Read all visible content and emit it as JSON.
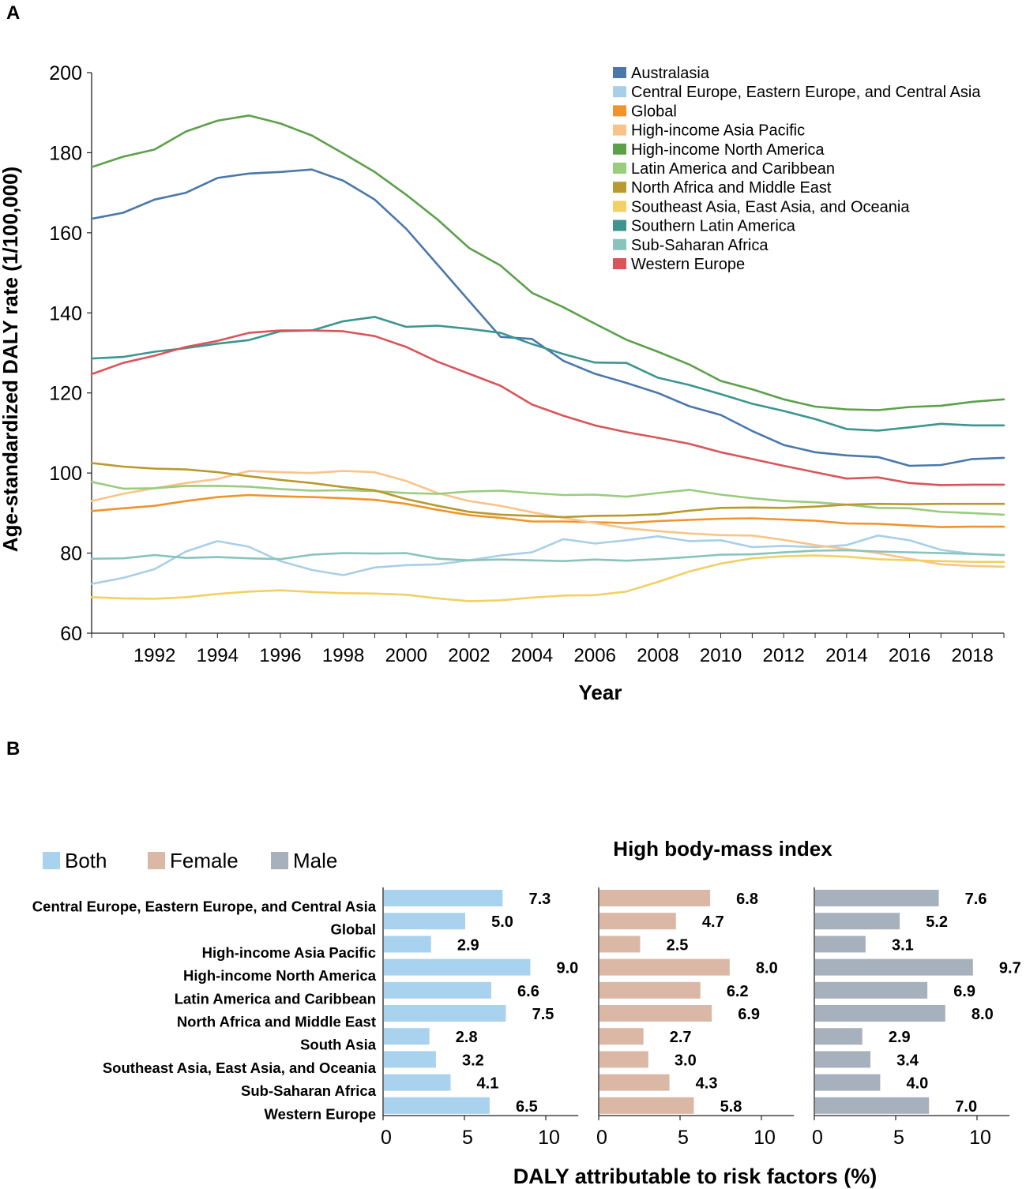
{
  "panel_labels": {
    "a": "A",
    "b": "B"
  },
  "chart_data": [
    {
      "type": "line",
      "panel": "A",
      "title": "",
      "xlabel": "Year",
      "ylabel": "Age-standardized DALY rate (1/100,000)",
      "xlim": [
        1990,
        2019
      ],
      "ylim": [
        60,
        200
      ],
      "y_ticks": [
        60,
        80,
        100,
        120,
        140,
        160,
        180,
        200
      ],
      "x_ticks": [
        1992,
        1994,
        1996,
        1998,
        2000,
        2002,
        2004,
        2006,
        2008,
        2010,
        2012,
        2014,
        2016,
        2018
      ],
      "x": [
        1990,
        1991,
        1992,
        1993,
        1994,
        1995,
        1996,
        1997,
        1998,
        1999,
        2000,
        2001,
        2002,
        2003,
        2004,
        2005,
        2006,
        2007,
        2008,
        2009,
        2010,
        2011,
        2012,
        2013,
        2014,
        2015,
        2016,
        2017,
        2018,
        2019
      ],
      "legend_position": "top-right",
      "series": [
        {
          "name": "Australasia",
          "color": "#4a78aa",
          "values": [
            163.5,
            165,
            168.3,
            170,
            173.7,
            174.8,
            175.2,
            175.8,
            173,
            168.3,
            161,
            152,
            143,
            134,
            133.5,
            128,
            124.8,
            122.5,
            120,
            116.7,
            114.5,
            110.5,
            107,
            105.2,
            104.4,
            104,
            101.8,
            102,
            103.5,
            103.8
          ]
        },
        {
          "name": "Central Europe, Eastern Europe, and Central Asia",
          "color": "#a9cfe8",
          "values": [
            72.3,
            73.8,
            76,
            80.4,
            83,
            81.6,
            78,
            75.8,
            74.5,
            76.4,
            77,
            77.2,
            78.2,
            79.4,
            80.2,
            83.5,
            82.4,
            83.2,
            84.2,
            83,
            83.2,
            81.5,
            81.8,
            81.5,
            82,
            84.4,
            83.2,
            80.8,
            79.8,
            79.5
          ]
        },
        {
          "name": "Global",
          "color": "#f0932b",
          "values": [
            90.5,
            91.2,
            91.8,
            93,
            94,
            94.5,
            94.2,
            94,
            93.7,
            93.3,
            92.3,
            90.8,
            89.5,
            88.8,
            87.9,
            87.9,
            87.7,
            87.5,
            88,
            88.3,
            88.6,
            88.7,
            88.4,
            88.1,
            87.4,
            87.3,
            86.9,
            86.5,
            86.6,
            86.6
          ]
        },
        {
          "name": "High-income Asia Pacific",
          "color": "#f9c489",
          "values": [
            93,
            94.8,
            96.2,
            97.5,
            98.5,
            100.5,
            100.2,
            100,
            100.5,
            100.2,
            98,
            95,
            93,
            91.8,
            90.2,
            88.8,
            87.5,
            86.2,
            85.5,
            84.9,
            84.5,
            84.4,
            83.3,
            82,
            81,
            80,
            78.6,
            77.2,
            76.8,
            76.6
          ]
        },
        {
          "name": "High-income North America",
          "color": "#5ca04a",
          "values": [
            176.4,
            179,
            180.8,
            185.3,
            188,
            189.3,
            187.3,
            184.3,
            179.8,
            175.2,
            169.5,
            163.3,
            156.2,
            151.8,
            145,
            141.4,
            137.3,
            133.3,
            130.3,
            127.1,
            123,
            120.9,
            118.4,
            116.6,
            115.9,
            115.7,
            116.5,
            116.8,
            117.8,
            118.4
          ]
        },
        {
          "name": "Latin America and Caribbean",
          "color": "#99cc7c",
          "values": [
            97.8,
            96.1,
            96.2,
            96.8,
            96.8,
            96.6,
            96,
            95.6,
            95.7,
            95.5,
            95,
            94.8,
            95.4,
            95.6,
            95,
            94.5,
            94.6,
            94.1,
            95,
            95.8,
            94.6,
            93.7,
            93,
            92.7,
            92.1,
            91.3,
            91.2,
            90.3,
            90,
            89.6
          ]
        },
        {
          "name": "North Africa and Middle East",
          "color": "#b89a2e",
          "values": [
            102.5,
            101.6,
            101.1,
            100.9,
            100.2,
            99.2,
            98.3,
            97.5,
            96.5,
            95.7,
            93.5,
            91.8,
            90.3,
            89.6,
            89.3,
            89,
            89.3,
            89.4,
            89.7,
            90.6,
            91.3,
            91.4,
            91.3,
            91.6,
            92.1,
            92.3,
            92.2,
            92.3,
            92.3,
            92.3
          ]
        },
        {
          "name": "Southeast Asia, East Asia, and Oceania",
          "color": "#f2d066",
          "values": [
            69,
            68.7,
            68.6,
            69,
            69.8,
            70.4,
            70.7,
            70.3,
            70,
            69.9,
            69.6,
            68.7,
            68,
            68.2,
            68.9,
            69.4,
            69.5,
            70.4,
            72.8,
            75.4,
            77.4,
            78.7,
            79.2,
            79.4,
            79.1,
            78.5,
            78.2,
            78,
            77.8,
            77.8
          ]
        },
        {
          "name": "Southern Latin America",
          "color": "#3c958f",
          "values": [
            128.6,
            129,
            130.3,
            131.2,
            132.3,
            133.2,
            135.4,
            135.6,
            137.9,
            139,
            136.5,
            136.8,
            136,
            135,
            132.2,
            129.7,
            127.6,
            127.5,
            123.8,
            122,
            119.7,
            117.3,
            115.5,
            113.5,
            111,
            110.6,
            111.4,
            112.3,
            111.9,
            111.9
          ]
        },
        {
          "name": "Sub-Saharan Africa",
          "color": "#89c4bc",
          "values": [
            78.6,
            78.7,
            79.5,
            78.8,
            79,
            78.7,
            78.5,
            79.6,
            80,
            79.9,
            80,
            78.6,
            78.2,
            78.4,
            78.2,
            78,
            78.4,
            78.1,
            78.5,
            79,
            79.6,
            79.7,
            80.2,
            80.6,
            80.7,
            80.4,
            80.2,
            80,
            79.8,
            79.5
          ]
        },
        {
          "name": "Western Europe",
          "color": "#d9555a",
          "values": [
            124.7,
            127.5,
            129.3,
            131.5,
            133,
            135,
            135.6,
            135.6,
            135.4,
            134.2,
            131.5,
            127.8,
            124.8,
            121.8,
            117.1,
            114.3,
            111.9,
            110.2,
            108.8,
            107.3,
            105.2,
            103.5,
            101.8,
            100.2,
            98.6,
            98.9,
            97.5,
            97,
            97.1,
            97.1
          ]
        }
      ]
    },
    {
      "type": "bar",
      "panel": "B",
      "title": "High body-mass index",
      "xlabel": "DALY attributable to risk factors (%)",
      "ylabel": "",
      "orientation": "horizontal",
      "xlim": [
        0,
        12
      ],
      "x_ticks": [
        0,
        5,
        10
      ],
      "categories": [
        "Central Europe, Eastern Europe, and Central Asia",
        "Global",
        "High-income Asia Pacific",
        "High-income North America",
        "Latin America and Caribbean",
        "North Africa and Middle East",
        "South Asia",
        "Southeast Asia, East Asia, and Oceania",
        "Sub-Saharan Africa",
        "Western Europe"
      ],
      "series": [
        {
          "name": "Both",
          "color": "#a9d2ef",
          "values": [
            7.3,
            5.0,
            2.9,
            9.0,
            6.6,
            7.5,
            2.8,
            3.2,
            4.1,
            6.5
          ],
          "labels": [
            "7.3",
            "5.0",
            "2.9",
            "9.0",
            "6.6",
            "7.5",
            "2.8",
            "3.2",
            "4.1",
            "6.5"
          ]
        },
        {
          "name": "Female",
          "color": "#dbb7a5",
          "values": [
            6.8,
            4.7,
            2.5,
            8.0,
            6.2,
            6.9,
            2.7,
            3.0,
            4.3,
            5.8
          ],
          "labels": [
            "6.8",
            "4.7",
            "2.5",
            "8.0",
            "6.2",
            "6.9",
            "2.7",
            "3.0",
            "4.3",
            "5.8"
          ]
        },
        {
          "name": "Male",
          "color": "#a7b0bd",
          "values": [
            7.6,
            5.2,
            3.1,
            9.7,
            6.9,
            8.0,
            2.9,
            3.4,
            4.0,
            7.0
          ],
          "labels": [
            "7.6",
            "5.2",
            "3.1",
            "9.7",
            "6.9",
            "8.0",
            "2.9",
            "3.4",
            "4.0",
            "7.0"
          ]
        }
      ],
      "legend_position": "top-left"
    }
  ]
}
